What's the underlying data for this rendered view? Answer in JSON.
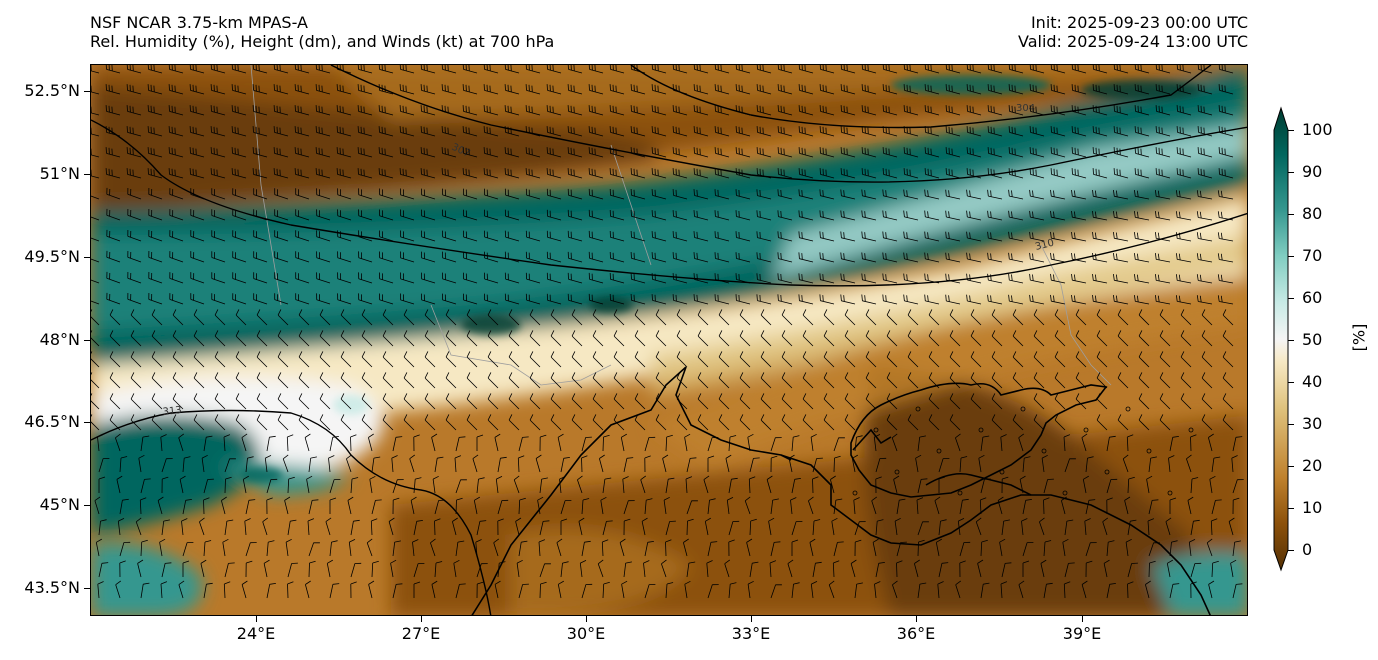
{
  "header": {
    "title_line1": "NSF NCAR 3.75-km MPAS-A",
    "title_line2": "Rel. Humidity (%), Height (dm), and Winds (kt) at 700 hPa",
    "init": "Init: 2025-09-23 00:00 UTC",
    "valid": "Valid: 2025-09-24 13:00 UTC"
  },
  "axes": {
    "lat_labels": [
      "52.5°N",
      "51°N",
      "49.5°N",
      "48°N",
      "46.5°N",
      "45°N",
      "43.5°N"
    ],
    "lon_labels": [
      "24°E",
      "27°E",
      "30°E",
      "33°E",
      "36°E",
      "39°E"
    ]
  },
  "contours": {
    "labels": [
      "304",
      "307",
      "310",
      "313"
    ]
  },
  "colorbar": {
    "ticks": [
      "100",
      "90",
      "80",
      "70",
      "60",
      "50",
      "40",
      "30",
      "20",
      "10",
      "0"
    ],
    "unit": "[%]",
    "colors": {
      "dry_dark": "#543005",
      "dry": "#8c510a",
      "tan": "#bf812d",
      "light_tan": "#dfc27d",
      "cream": "#f6e8c3",
      "neutral": "#f5f5f5",
      "pale_teal": "#c7eae5",
      "teal": "#80cdc1",
      "mid_teal": "#35978f",
      "deep_teal": "#01665e",
      "darkest_teal": "#003c30"
    }
  }
}
